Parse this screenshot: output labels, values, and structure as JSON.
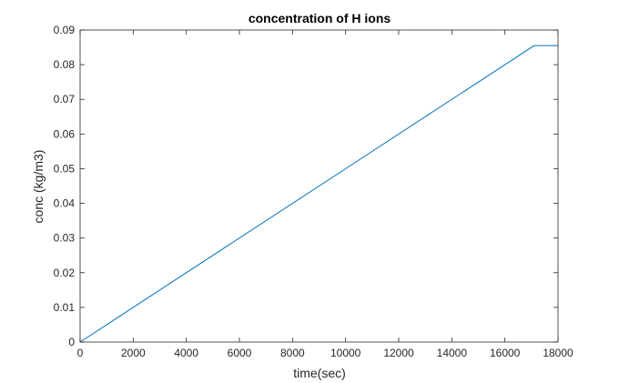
{
  "chart_data": {
    "type": "line",
    "title": "concentration of H ions",
    "xlabel": "time(sec)",
    "ylabel": "conc (kg/m3)",
    "xlim": [
      0,
      18000
    ],
    "ylim": [
      0,
      0.09
    ],
    "xticks": [
      0,
      2000,
      4000,
      6000,
      8000,
      10000,
      12000,
      14000,
      16000,
      18000
    ],
    "xtick_labels": [
      "0",
      "2000",
      "4000",
      "6000",
      "8000",
      "10000",
      "12000",
      "14000",
      "16000",
      "18000"
    ],
    "yticks": [
      0,
      0.01,
      0.02,
      0.03,
      0.04,
      0.05,
      0.06,
      0.07,
      0.08,
      0.09
    ],
    "ytick_labels": [
      "0",
      "0.01",
      "0.02",
      "0.03",
      "0.04",
      "0.05",
      "0.06",
      "0.07",
      "0.08",
      "0.09"
    ],
    "grid": false,
    "legend": "none",
    "series": [
      {
        "color": "#0072BD",
        "x": [
          0,
          17100,
          18000
        ],
        "y": [
          0,
          0.0855,
          0.0855
        ]
      }
    ]
  }
}
